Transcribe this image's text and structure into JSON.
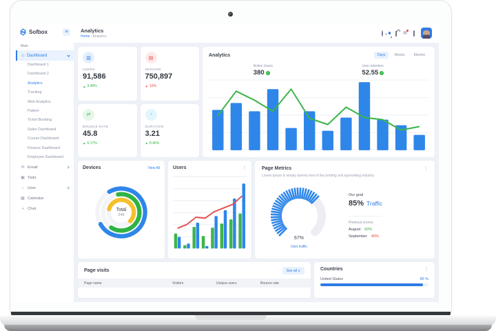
{
  "sidebar": {
    "logo": "Sofbox",
    "section_label": "Main",
    "dashboard_label": "Dashboard",
    "submenu": [
      "Dashboard 1",
      "Dashboard 2",
      "Analytics",
      "Tracking",
      "Web Analytics",
      "Patient",
      "Ticket Booking",
      "Sales Dashboard",
      "Course Dashboard",
      "Finance Dashboard",
      "Employee Dashboard"
    ],
    "active_submenu": "Analytics",
    "items": [
      {
        "label": "Email",
        "icon": "envelope-icon",
        "chevron": true
      },
      {
        "label": "Todo",
        "icon": "todo-icon",
        "chevron": false
      },
      {
        "label": "User",
        "icon": "user-icon",
        "chevron": true
      },
      {
        "label": "Calendar",
        "icon": "calendar-icon",
        "chevron": false
      },
      {
        "label": "Chat",
        "icon": "chat-icon",
        "chevron": false
      }
    ]
  },
  "topbar": {
    "title": "Analytics",
    "breadcrumb_home": "Home",
    "breadcrumb_sep": "›",
    "breadcrumb_current": "Analytics",
    "icons": [
      "search-icon",
      "bell-icon",
      "cart-icon",
      "mail-icon",
      "fullscreen-icon",
      "avatar"
    ]
  },
  "stat_cards": [
    {
      "label": "USERS",
      "value": "91,586",
      "delta": "3.48%",
      "trend": "up",
      "accent": "#2e7be5",
      "icon": "users-card-icon"
    },
    {
      "label": "SESSION",
      "value": "750,897",
      "delta": "10%",
      "trend": "down",
      "accent": "#f0413d",
      "icon": "session-card-icon"
    },
    {
      "label": "BOUNCE RATE",
      "value": "45.8",
      "delta": "5.17%",
      "trend": "up",
      "accent": "#32b643",
      "icon": "bounce-card-icon"
    },
    {
      "label": "DURATION",
      "value": "3.21",
      "delta": "8.46%",
      "trend": "up",
      "accent": "#29b6d8",
      "icon": "duration-card-icon"
    }
  ],
  "analytics_panel": {
    "title": "Analytics",
    "tabs": [
      "Days",
      "Weeks",
      "Months"
    ],
    "active_tab": "Days",
    "metrics": [
      {
        "label": "Active Users",
        "value": "380"
      },
      {
        "label": "User retention",
        "value": "52.55"
      }
    ]
  },
  "devices": {
    "title": "Devices",
    "action": "View All",
    "total_label": "Total",
    "total_value": "249"
  },
  "users_panel": {
    "title": "Users"
  },
  "page_metrics": {
    "title": "Page Metrics",
    "subtitle": "Lorem Ipsum is simply dummy text of the printing and typesetting industry.",
    "gauge_value": "67%",
    "gauge_label": "User traffic",
    "goal_label": "Our goal",
    "goal_value": "85%",
    "goal_suffix": "Traffic",
    "previous_label": "Previous scores",
    "previous": [
      {
        "month": "August",
        "value": "69%",
        "status": "good"
      },
      {
        "month": "September",
        "value": "40%",
        "status": "bad"
      }
    ]
  },
  "page_visits": {
    "title": "Page visits",
    "action": "See all",
    "action_caret": "∨",
    "columns": [
      "Page name",
      "Visitors",
      "Unique users",
      "Bounce rate"
    ]
  },
  "countries": {
    "title": "Countries",
    "rows": [
      {
        "name": "United States",
        "value": "95 %",
        "percent": 95
      }
    ]
  },
  "chart_data": [
    {
      "id": "analytics_overview",
      "type": "bar",
      "title": "Analytics",
      "x": [
        1,
        2,
        3,
        4,
        5,
        6,
        7,
        8,
        9,
        10,
        11,
        12
      ],
      "series": [
        {
          "name": "sessions-bars",
          "type": "bar",
          "color": "#2e86e9",
          "values": [
            58,
            68,
            56,
            88,
            32,
            56,
            28,
            47,
            98,
            44,
            36,
            22
          ]
        },
        {
          "name": "retention-line",
          "type": "line",
          "color": "#3cb54a",
          "values": [
            50,
            85,
            72,
            56,
            88,
            46,
            37,
            62,
            47,
            44,
            29,
            34
          ]
        }
      ],
      "ylim": [
        0,
        100
      ],
      "grid": true,
      "legend": "none"
    },
    {
      "id": "users_mini",
      "type": "bar",
      "title": "Users",
      "x": [
        1,
        2,
        3,
        4,
        5,
        6,
        7,
        8
      ],
      "series": [
        {
          "name": "new-users",
          "type": "bar",
          "color": "#3cb54a",
          "values": [
            18,
            4,
            26,
            15,
            25,
            30,
            35,
            42
          ]
        },
        {
          "name": "returning-users",
          "type": "bar",
          "color": "#2e86e9",
          "values": [
            14,
            6,
            31,
            3,
            39,
            46,
            60,
            78
          ]
        },
        {
          "name": "trend",
          "type": "line",
          "color": "#e05252",
          "values": [
            22,
            26,
            34,
            33,
            40,
            44,
            48,
            57
          ]
        }
      ],
      "ylim": [
        0,
        100
      ],
      "grid": true
    },
    {
      "id": "devices_donut",
      "type": "pie",
      "title": "Devices",
      "total": 249,
      "segments": [
        {
          "name": "segment-1",
          "color": "#2e86e9",
          "percent": 75,
          "rotate": -120,
          "radius": 36
        },
        {
          "name": "segment-2",
          "color": "#2fb344",
          "percent": 62,
          "rotate": -100,
          "radius": 27.5
        },
        {
          "name": "segment-3",
          "color": "#f5c02c",
          "percent": 58,
          "rotate": -165,
          "radius": 19
        }
      ],
      "track_color": "#f2f4f8"
    },
    {
      "id": "traffic_gauge",
      "type": "gauge",
      "title": "Page Metrics",
      "value": 67,
      "max": 100,
      "start_angle": 135,
      "span": 270,
      "fill_color": "#2e86e9",
      "rest_color": "#eceef3"
    }
  ]
}
